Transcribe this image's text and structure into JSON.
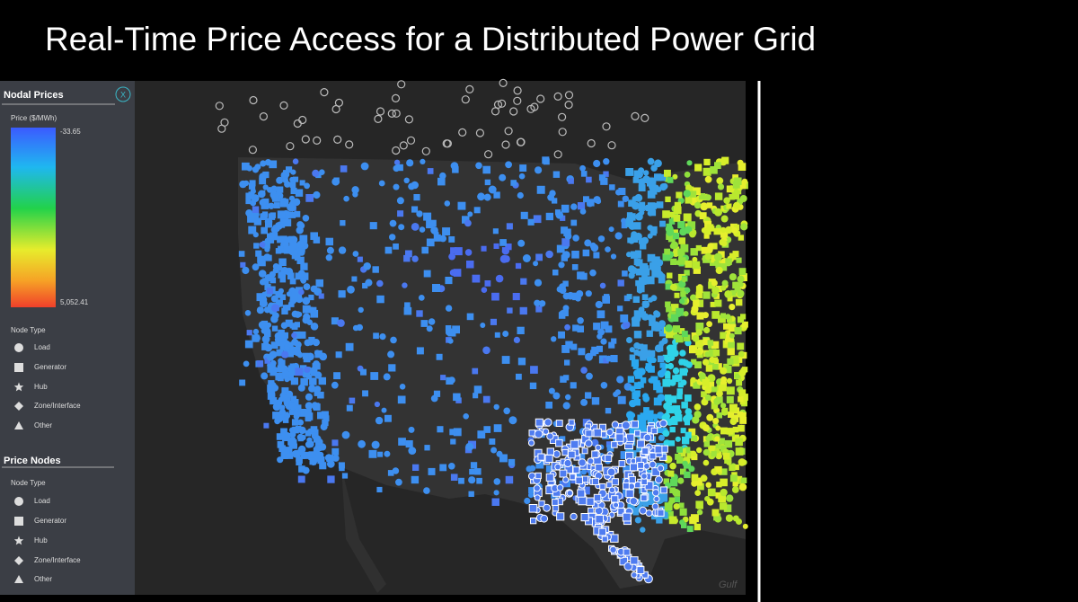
{
  "title": "Real-Time Price Access for a Distributed Power Grid",
  "sidebar": {
    "nodal_prices": {
      "heading": "Nodal Prices",
      "close": "X",
      "scale_title": "Price ($/MWh)",
      "scale_min": "-33.65",
      "scale_max": "5,052.41",
      "node_type_heading": "Node Type",
      "node_types": [
        "Load",
        "Generator",
        "Hub",
        "Zone/Interface",
        "Other"
      ]
    },
    "price_nodes": {
      "heading": "Price Nodes",
      "node_type_heading": "Node Type",
      "node_types": [
        "Load",
        "Generator",
        "Hub",
        "Zone/Interface",
        "Other"
      ]
    }
  },
  "map": {
    "label": "Gulf"
  }
}
